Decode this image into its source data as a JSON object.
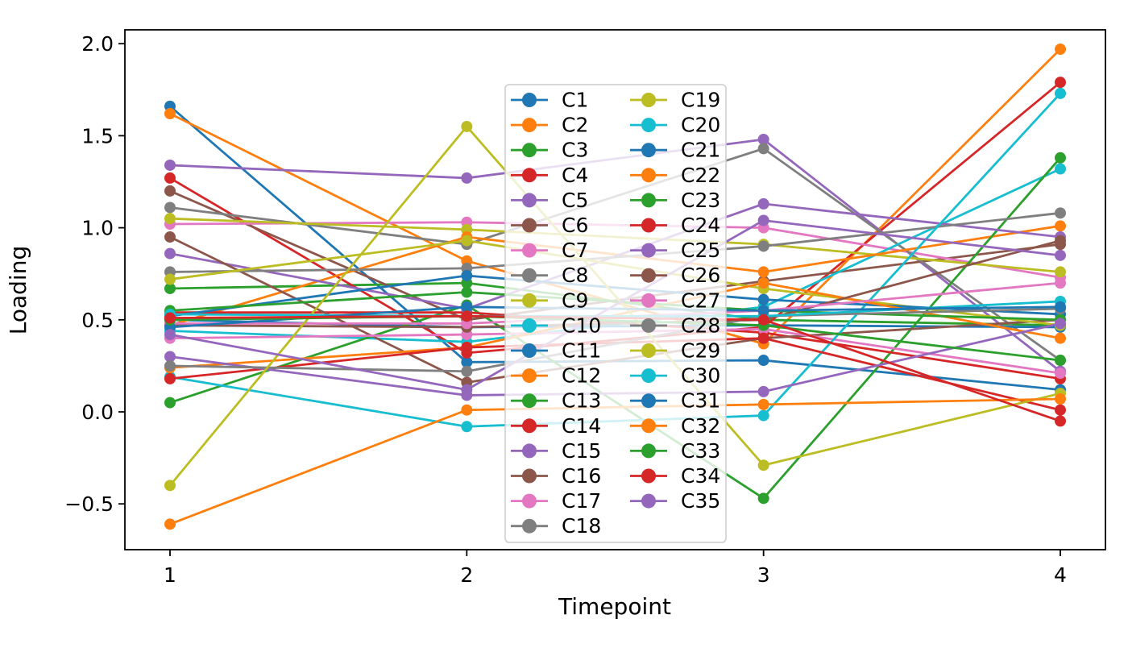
{
  "figure": {
    "background": "#ffffff"
  },
  "chart_data": {
    "type": "line",
    "title": "",
    "xlabel": "Timepoint",
    "ylabel": "Loading",
    "x": [
      1,
      2,
      3,
      4
    ],
    "xtick_labels": [
      "1",
      "2",
      "3",
      "4"
    ],
    "ytick_values": [
      2.0,
      1.5,
      1.0,
      0.5,
      0.0,
      -0.5
    ],
    "ytick_labels": [
      "2.0",
      "1.5",
      "1.0",
      "0.5",
      "0.0",
      "−0.5"
    ],
    "xlim": [
      0.85,
      4.15
    ],
    "ylim": [
      -0.75,
      2.1
    ],
    "grid": false,
    "legend_position": "center inside plot, two columns",
    "legend_columns": [
      18,
      17
    ],
    "series": [
      {
        "name": "C1",
        "color": "#1f77b4",
        "values": [
          1.66,
          0.27,
          0.28,
          0.12
        ]
      },
      {
        "name": "C2",
        "color": "#ff7f0e",
        "values": [
          1.62,
          0.82,
          0.37,
          1.97
        ]
      },
      {
        "name": "C3",
        "color": "#2ca02c",
        "values": [
          0.67,
          0.7,
          0.5,
          0.47
        ]
      },
      {
        "name": "C4",
        "color": "#d62728",
        "values": [
          1.27,
          0.32,
          0.46,
          1.79
        ]
      },
      {
        "name": "C5",
        "color": "#9467bd",
        "values": [
          1.34,
          1.27,
          1.48,
          0.22
        ]
      },
      {
        "name": "C6",
        "color": "#8c564b",
        "values": [
          1.2,
          0.5,
          0.71,
          0.91
        ]
      },
      {
        "name": "C7",
        "color": "#e377c2",
        "values": [
          1.02,
          1.03,
          1.0,
          0.73
        ]
      },
      {
        "name": "C8",
        "color": "#7f7f7f",
        "values": [
          1.11,
          0.91,
          1.43,
          0.28
        ]
      },
      {
        "name": "C9",
        "color": "#bcbd22",
        "values": [
          1.05,
          0.99,
          0.91,
          0.76
        ]
      },
      {
        "name": "C10",
        "color": "#17becf",
        "values": [
          0.44,
          0.38,
          0.57,
          1.32
        ]
      },
      {
        "name": "C11",
        "color": "#1f77b4",
        "values": [
          0.5,
          0.46,
          0.47,
          0.46
        ]
      },
      {
        "name": "C12",
        "color": "#ff7f0e",
        "values": [
          0.47,
          0.95,
          0.76,
          1.01
        ]
      },
      {
        "name": "C13",
        "color": "#2ca02c",
        "values": [
          0.05,
          0.58,
          -0.47,
          1.38
        ]
      },
      {
        "name": "C14",
        "color": "#d62728",
        "values": [
          0.54,
          0.54,
          0.43,
          0.18
        ]
      },
      {
        "name": "C15",
        "color": "#9467bd",
        "values": [
          0.86,
          0.56,
          1.13,
          0.95
        ]
      },
      {
        "name": "C16",
        "color": "#8c564b",
        "values": [
          0.95,
          0.16,
          0.4,
          0.5
        ]
      },
      {
        "name": "C17",
        "color": "#e377c2",
        "values": [
          0.4,
          0.42,
          0.45,
          0.21
        ]
      },
      {
        "name": "C18",
        "color": "#7f7f7f",
        "values": [
          0.76,
          0.78,
          0.9,
          1.08
        ]
      },
      {
        "name": "C19",
        "color": "#bcbd22",
        "values": [
          0.72,
          0.93,
          0.67,
          0.47
        ]
      },
      {
        "name": "C20",
        "color": "#17becf",
        "values": [
          0.19,
          -0.08,
          -0.02,
          1.73
        ]
      },
      {
        "name": "C21",
        "color": "#1f77b4",
        "values": [
          0.52,
          0.74,
          0.61,
          0.53
        ]
      },
      {
        "name": "C22",
        "color": "#ff7f0e",
        "values": [
          0.24,
          0.35,
          0.7,
          0.4
        ]
      },
      {
        "name": "C23",
        "color": "#2ca02c",
        "values": [
          0.55,
          0.65,
          0.55,
          0.5
        ]
      },
      {
        "name": "C24",
        "color": "#d62728",
        "values": [
          0.18,
          0.35,
          0.4,
          0.01
        ]
      },
      {
        "name": "C25",
        "color": "#9467bd",
        "values": [
          0.3,
          0.09,
          0.11,
          0.48
        ]
      },
      {
        "name": "C26",
        "color": "#8c564b",
        "values": [
          0.47,
          0.46,
          0.5,
          0.93
        ]
      },
      {
        "name": "C27",
        "color": "#e377c2",
        "values": [
          0.48,
          0.48,
          0.55,
          0.7
        ]
      },
      {
        "name": "C28",
        "color": "#7f7f7f",
        "values": [
          0.25,
          0.22,
          0.52,
          0.56
        ]
      },
      {
        "name": "C29",
        "color": "#bcbd22",
        "values": [
          -0.4,
          1.55,
          -0.29,
          0.1
        ]
      },
      {
        "name": "C30",
        "color": "#17becf",
        "values": [
          0.53,
          0.52,
          0.52,
          0.6
        ]
      },
      {
        "name": "C31",
        "color": "#1f77b4",
        "values": [
          0.46,
          0.57,
          0.55,
          0.57
        ]
      },
      {
        "name": "C32",
        "color": "#ff7f0e",
        "values": [
          -0.61,
          0.01,
          0.04,
          0.07
        ]
      },
      {
        "name": "C33",
        "color": "#2ca02c",
        "values": [
          0.5,
          0.52,
          0.47,
          0.28
        ]
      },
      {
        "name": "C34",
        "color": "#d62728",
        "values": [
          0.51,
          0.52,
          0.5,
          -0.05
        ]
      },
      {
        "name": "C35",
        "color": "#9467bd",
        "values": [
          0.42,
          0.12,
          1.04,
          0.85
        ]
      }
    ]
  }
}
